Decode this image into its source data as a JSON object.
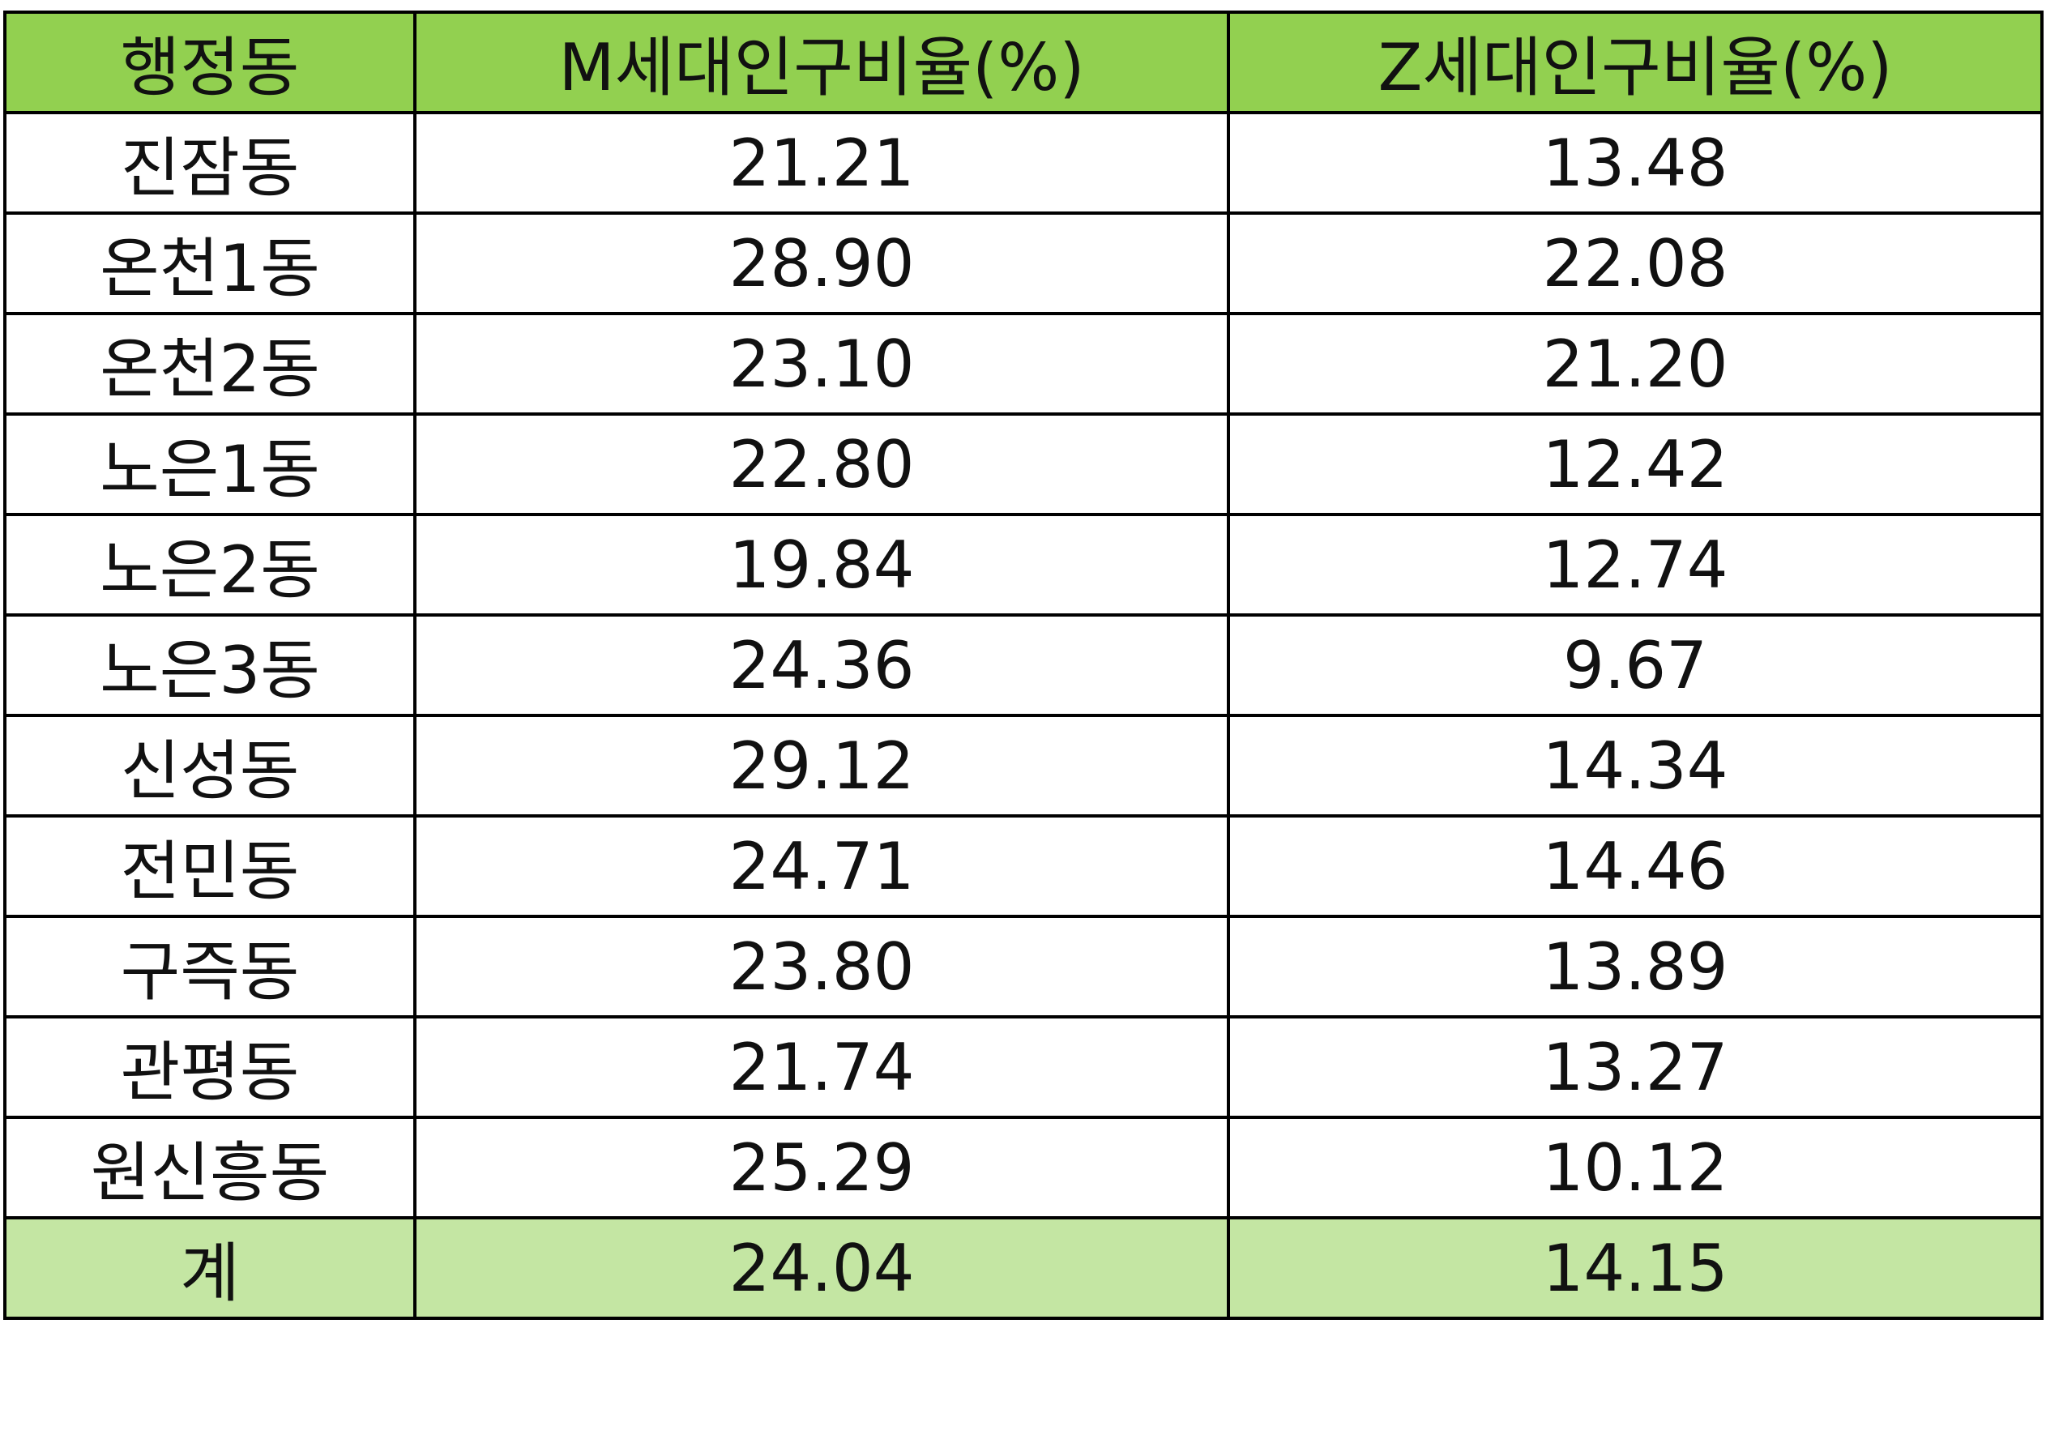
{
  "colors": {
    "header_bg": "#92d050",
    "total_bg": "#c4e6a3",
    "border": "#000000"
  },
  "table": {
    "headers": [
      "행정동",
      "M세대인구비율(%)",
      "Z세대인구비율(%)"
    ],
    "rows": [
      [
        "진잠동",
        "21.21",
        "13.48"
      ],
      [
        "온천1동",
        "28.90",
        "22.08"
      ],
      [
        "온천2동",
        "23.10",
        "21.20"
      ],
      [
        "노은1동",
        "22.80",
        "12.42"
      ],
      [
        "노은2동",
        "19.84",
        "12.74"
      ],
      [
        "노은3동",
        "24.36",
        "9.67"
      ],
      [
        "신성동",
        "29.12",
        "14.34"
      ],
      [
        "전민동",
        "24.71",
        "14.46"
      ],
      [
        "구즉동",
        "23.80",
        "13.89"
      ],
      [
        "관평동",
        "21.74",
        "13.27"
      ],
      [
        "원신흥동",
        "25.29",
        "10.12"
      ]
    ],
    "total": [
      "계",
      "24.04",
      "14.15"
    ]
  }
}
